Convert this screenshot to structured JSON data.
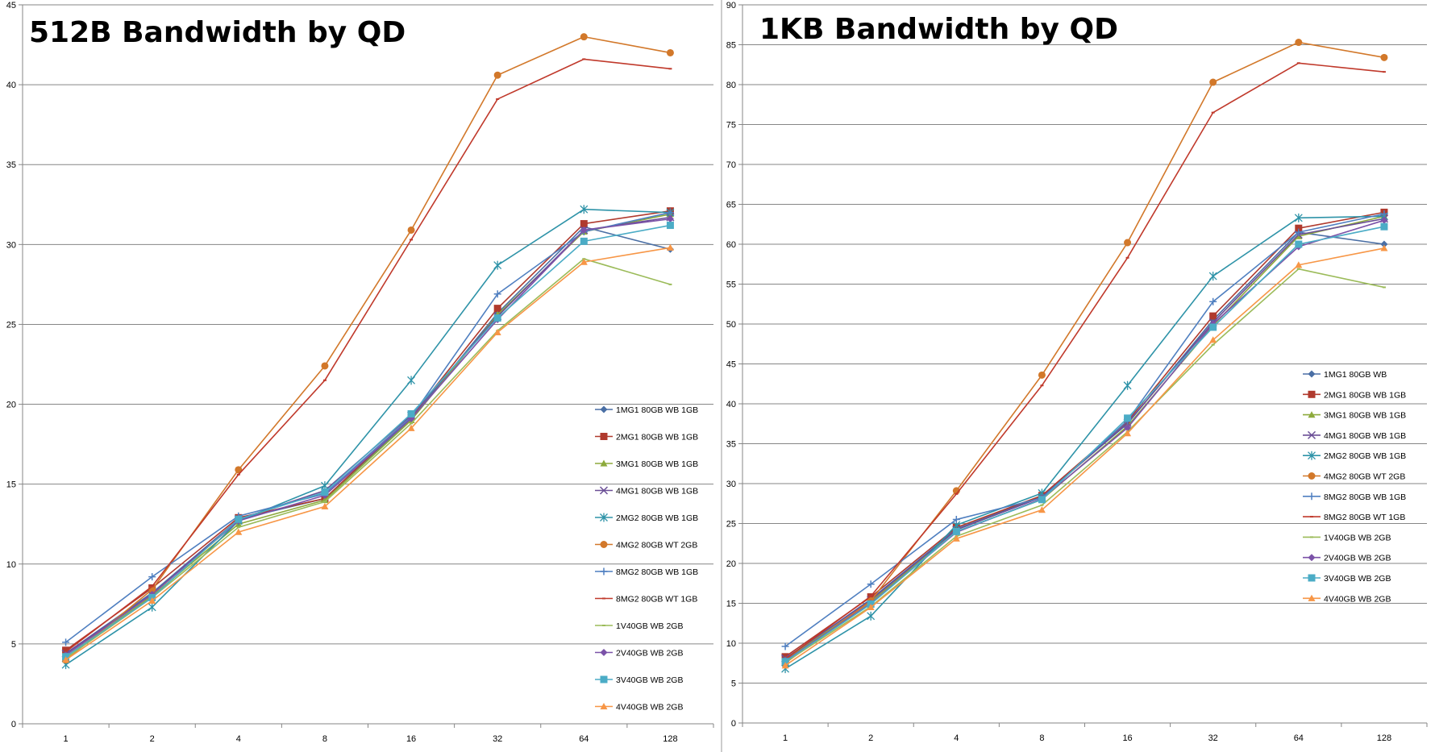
{
  "chart_data": [
    {
      "type": "line",
      "title": "512B Bandwidth by QD",
      "xlabel": "",
      "ylabel": "",
      "categories": [
        "1",
        "2",
        "4",
        "8",
        "16",
        "32",
        "64",
        "128"
      ],
      "ylim": [
        0,
        45
      ],
      "yticks": [
        0,
        5,
        10,
        15,
        20,
        25,
        30,
        35,
        40,
        45
      ],
      "grid": true,
      "legend": "right",
      "series": [
        {
          "name": "1MG1 80GB WB 1GB",
          "color": "#4A6FA5",
          "marker": "diamond",
          "values": [
            4.4,
            8.2,
            12.8,
            14.1,
            19.1,
            25.7,
            31.1,
            29.7
          ]
        },
        {
          "name": "2MG1 80GB WB 1GB",
          "color": "#B03A2E",
          "marker": "square",
          "values": [
            4.6,
            8.5,
            12.9,
            14.1,
            19.2,
            26.0,
            31.3,
            32.1
          ]
        },
        {
          "name": "3MG1 80GB WB 1GB",
          "color": "#8DAA3C",
          "marker": "triangle",
          "values": [
            4.2,
            8.0,
            12.5,
            14.0,
            19.0,
            25.6,
            30.8,
            31.9
          ]
        },
        {
          "name": "4MG1 80GB WB 1GB",
          "color": "#6B4F96",
          "marker": "x",
          "values": [
            4.4,
            8.1,
            12.8,
            14.6,
            19.3,
            25.5,
            30.9,
            31.7
          ]
        },
        {
          "name": "2MG2 80GB WB 1GB",
          "color": "#2E93A8",
          "marker": "star",
          "values": [
            3.7,
            7.3,
            12.7,
            14.9,
            21.5,
            28.7,
            32.2,
            32.0
          ]
        },
        {
          "name": "4MG2 80GB WT 2GB",
          "color": "#D2782A",
          "marker": "circle",
          "values": [
            4.0,
            8.4,
            15.9,
            22.4,
            30.9,
            40.6,
            43.0,
            42.0
          ]
        },
        {
          "name": "8MG2 80GB WB 1GB",
          "color": "#4F7FC0",
          "marker": "plus",
          "values": [
            5.1,
            9.2,
            13.0,
            14.4,
            19.2,
            26.9,
            30.8,
            32.0
          ]
        },
        {
          "name": "8MG2 80GB WT 1GB",
          "color": "#C0392B",
          "marker": "dash",
          "values": [
            4.5,
            8.6,
            15.6,
            21.5,
            30.3,
            39.1,
            41.6,
            41.0
          ]
        },
        {
          "name": "1V40GB WB 2GB",
          "color": "#9BBB59",
          "marker": "dash",
          "values": [
            4.1,
            7.9,
            12.3,
            13.9,
            18.8,
            24.6,
            29.1,
            27.5
          ]
        },
        {
          "name": "2V40GB WB 2GB",
          "color": "#7B52A8",
          "marker": "diamond",
          "values": [
            4.3,
            8.1,
            12.7,
            14.3,
            19.1,
            25.3,
            30.9,
            31.6
          ]
        },
        {
          "name": "3V40GB WB 2GB",
          "color": "#4BACC6",
          "marker": "square",
          "values": [
            4.2,
            7.9,
            12.8,
            14.5,
            19.4,
            25.4,
            30.2,
            31.2
          ]
        },
        {
          "name": "4V40GB WB 2GB",
          "color": "#F79646",
          "marker": "triangle",
          "values": [
            4.0,
            7.7,
            12.0,
            13.6,
            18.5,
            24.5,
            28.9,
            29.8
          ]
        }
      ]
    },
    {
      "type": "line",
      "title": "1KB Bandwidth by QD",
      "xlabel": "",
      "ylabel": "",
      "categories": [
        "1",
        "2",
        "4",
        "8",
        "16",
        "32",
        "64",
        "128"
      ],
      "ylim": [
        0,
        90
      ],
      "yticks": [
        0,
        5,
        10,
        15,
        20,
        25,
        30,
        35,
        40,
        45,
        50,
        55,
        60,
        65,
        70,
        75,
        80,
        85,
        90
      ],
      "grid": true,
      "legend": "right",
      "series": [
        {
          "name": "1MG1 80GB WB",
          "color": "#4A6FA5",
          "marker": "diamond",
          "values": [
            8.0,
            15.5,
            24.3,
            28.4,
            37.5,
            50.5,
            61.5,
            60.0
          ]
        },
        {
          "name": "2MG1 80GB WB 1GB",
          "color": "#B03A2E",
          "marker": "square",
          "values": [
            8.3,
            15.8,
            24.5,
            28.5,
            37.8,
            51.0,
            62.0,
            64.0
          ]
        },
        {
          "name": "3MG1 80GB WB 1GB",
          "color": "#8DAA3C",
          "marker": "triangle",
          "values": [
            7.9,
            15.2,
            24.0,
            28.0,
            37.2,
            49.8,
            61.0,
            63.5
          ]
        },
        {
          "name": "4MG1 80GB WB 1GB",
          "color": "#6B4F96",
          "marker": "x",
          "values": [
            8.1,
            15.4,
            24.2,
            28.3,
            37.6,
            50.2,
            61.2,
            63.2
          ]
        },
        {
          "name": "2MG2 80GB WB 1GB",
          "color": "#2E93A8",
          "marker": "star",
          "values": [
            6.8,
            13.4,
            24.8,
            28.8,
            42.3,
            56.0,
            63.3,
            63.5
          ]
        },
        {
          "name": "4MG2 80GB WT 2GB",
          "color": "#D2782A",
          "marker": "circle",
          "values": [
            7.5,
            15.3,
            29.1,
            43.6,
            60.2,
            80.3,
            85.3,
            83.4
          ]
        },
        {
          "name": "8MG2 80GB WB 1GB",
          "color": "#4F7FC0",
          "marker": "plus",
          "values": [
            9.6,
            17.4,
            25.5,
            28.2,
            37.9,
            52.8,
            61.5,
            63.8
          ]
        },
        {
          "name": "8MG2 80GB WT 1GB",
          "color": "#C0392B",
          "marker": "dash",
          "values": [
            8.0,
            15.9,
            28.7,
            42.3,
            58.3,
            76.5,
            82.7,
            81.6
          ]
        },
        {
          "name": "1V40GB WB 2GB",
          "color": "#9BBB59",
          "marker": "dash",
          "values": [
            7.6,
            14.6,
            23.4,
            27.3,
            36.5,
            47.4,
            56.9,
            54.6
          ]
        },
        {
          "name": "2V40GB WB 2GB",
          "color": "#7B52A8",
          "marker": "diamond",
          "values": [
            7.8,
            15.0,
            23.9,
            28.1,
            37.0,
            50.0,
            59.7,
            63.0
          ]
        },
        {
          "name": "3V40GB WB 2GB",
          "color": "#4BACC6",
          "marker": "square",
          "values": [
            7.7,
            14.9,
            24.0,
            28.0,
            38.2,
            49.6,
            60.0,
            62.2
          ]
        },
        {
          "name": "4V40GB WB 2GB",
          "color": "#F79646",
          "marker": "triangle",
          "values": [
            7.2,
            14.5,
            23.1,
            26.7,
            36.3,
            48.0,
            57.4,
            59.5
          ]
        }
      ]
    }
  ]
}
